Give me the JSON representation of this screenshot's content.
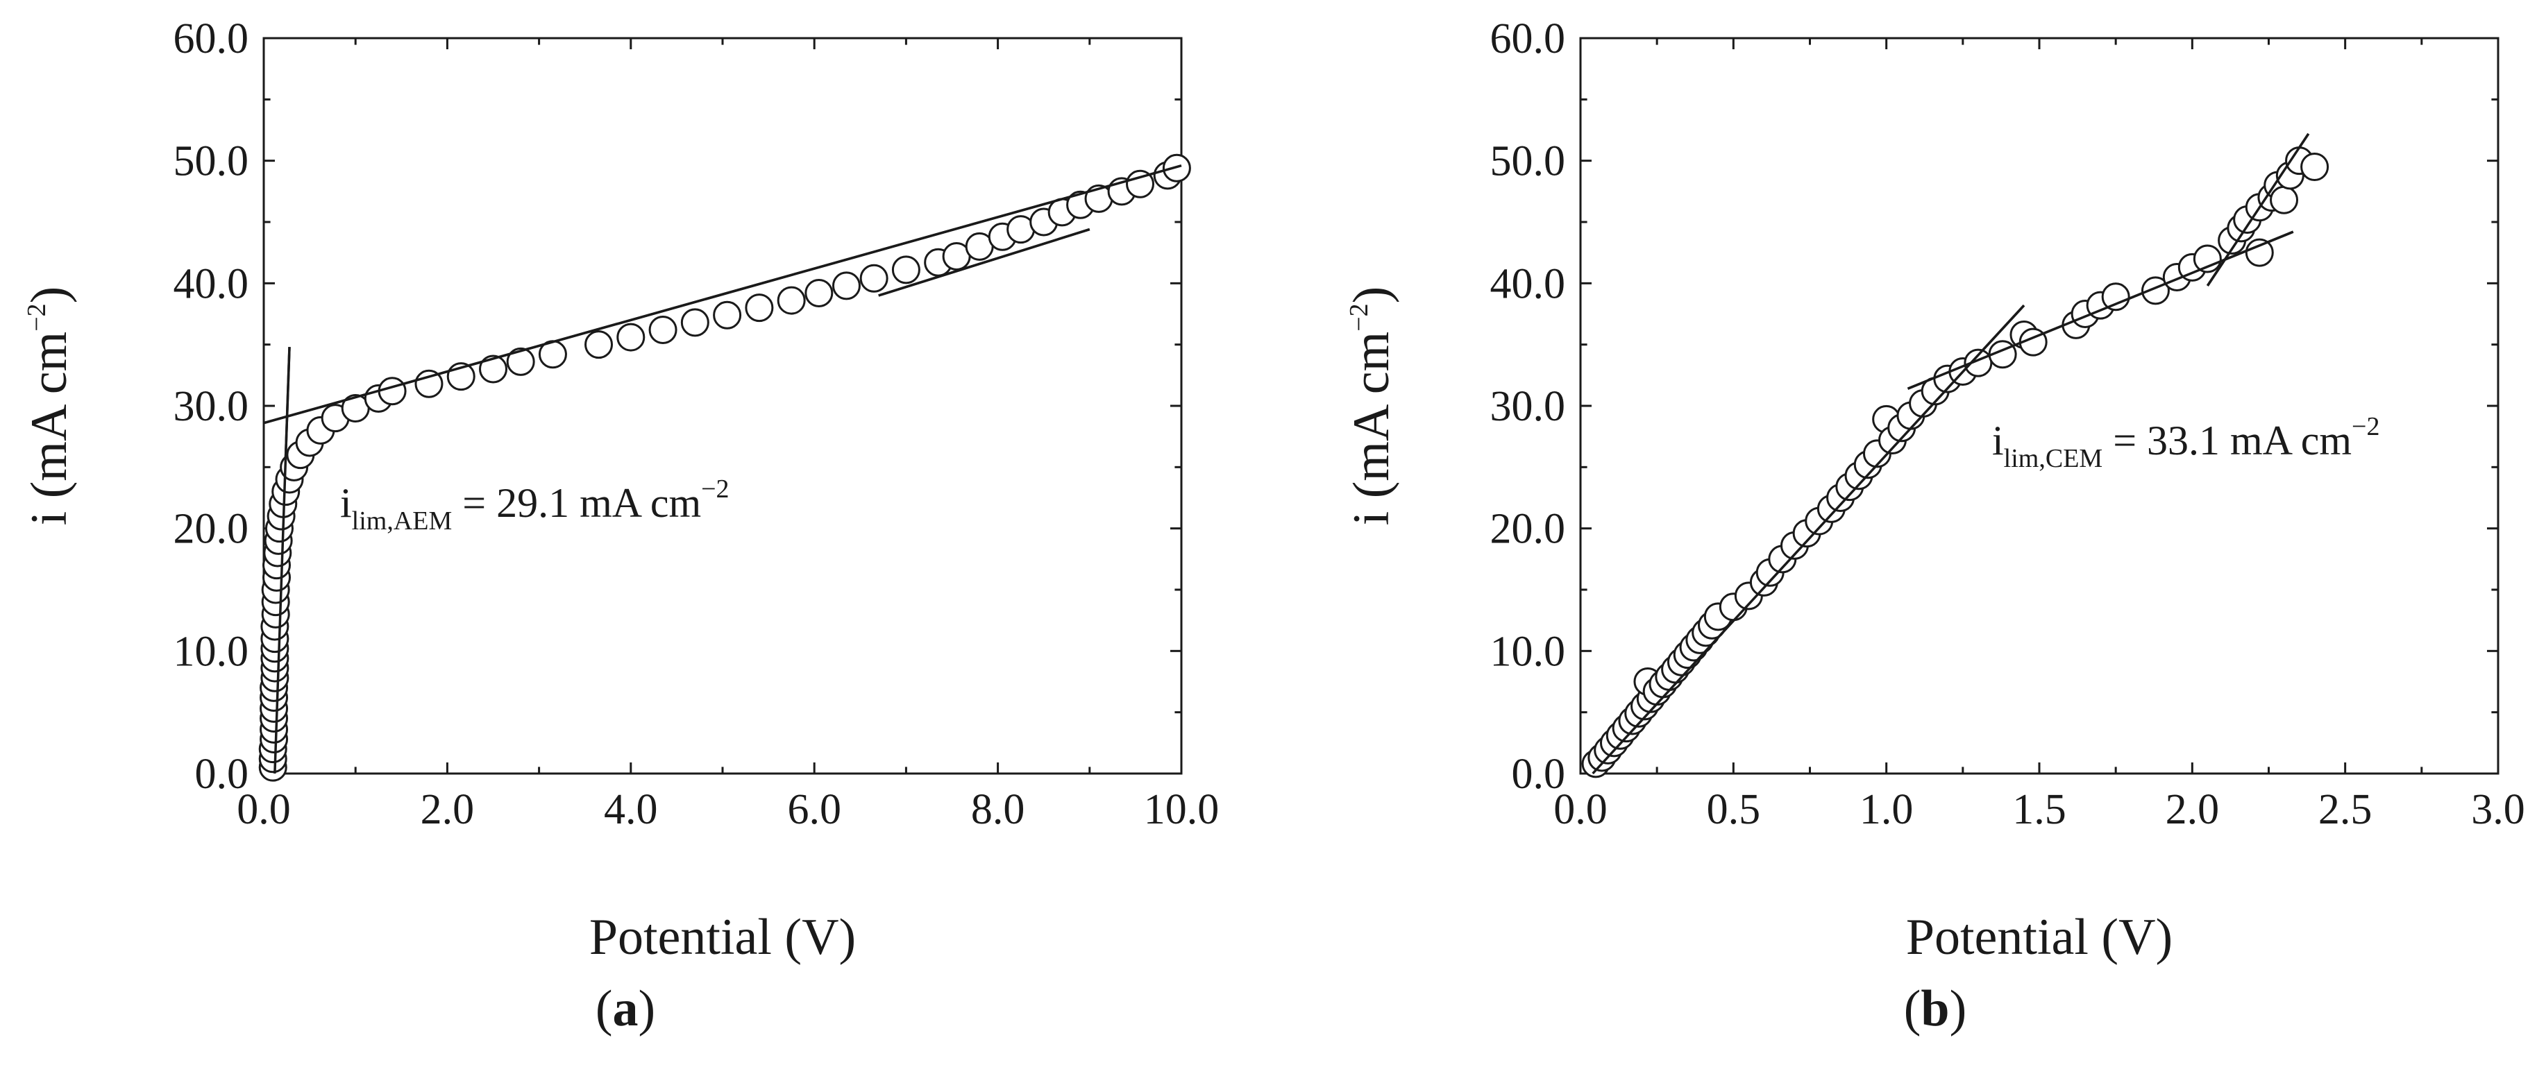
{
  "chart_data": [
    {
      "type": "scatter",
      "panel_label": "(a)",
      "panel_letter": "a",
      "xlabel": "Potential (V)",
      "ylabel": "i (mA cm−2)",
      "ylabel_main": "i (mA cm",
      "ylabel_sup": "−2",
      "ylabel_close": ")",
      "xlim": [
        0,
        10
      ],
      "ylim": [
        0,
        60
      ],
      "x_ticks": [
        0,
        2,
        4,
        6,
        8,
        10
      ],
      "x_tick_labels": [
        "0.0",
        "2.0",
        "4.0",
        "6.0",
        "8.0",
        "10.0"
      ],
      "y_ticks": [
        0,
        10,
        20,
        30,
        40,
        50,
        60
      ],
      "y_tick_labels": [
        "0.0",
        "10.0",
        "20.0",
        "30.0",
        "40.0",
        "50.0",
        "60.0"
      ],
      "annotation": {
        "base": "i",
        "sub": "lim,AEM",
        "rest": " = 29.1 mA cm",
        "sup": "−2",
        "x": 0.85,
        "y": 22.5
      },
      "points": [
        [
          0.1,
          0.5
        ],
        [
          0.1,
          1.2
        ],
        [
          0.1,
          2.0
        ],
        [
          0.11,
          2.8
        ],
        [
          0.11,
          3.6
        ],
        [
          0.11,
          4.5
        ],
        [
          0.11,
          5.3
        ],
        [
          0.11,
          6.2
        ],
        [
          0.11,
          7.0
        ],
        [
          0.12,
          7.8
        ],
        [
          0.12,
          8.6
        ],
        [
          0.12,
          9.4
        ],
        [
          0.12,
          10.2
        ],
        [
          0.12,
          11.0
        ],
        [
          0.12,
          12.0
        ],
        [
          0.13,
          13.0
        ],
        [
          0.13,
          14.0
        ],
        [
          0.13,
          15.0
        ],
        [
          0.14,
          16.0
        ],
        [
          0.14,
          17.0
        ],
        [
          0.15,
          18.0
        ],
        [
          0.16,
          19.0
        ],
        [
          0.17,
          20.0
        ],
        [
          0.19,
          21.0
        ],
        [
          0.21,
          22.0
        ],
        [
          0.24,
          23.0
        ],
        [
          0.28,
          24.0
        ],
        [
          0.33,
          25.0
        ],
        [
          0.4,
          26.0
        ],
        [
          0.5,
          27.0
        ],
        [
          0.62,
          28.0
        ],
        [
          0.78,
          29.0
        ],
        [
          1.0,
          29.8
        ],
        [
          1.25,
          30.6
        ],
        [
          1.4,
          31.2
        ],
        [
          1.8,
          31.8
        ],
        [
          2.15,
          32.4
        ],
        [
          2.5,
          33.0
        ],
        [
          2.8,
          33.6
        ],
        [
          3.15,
          34.2
        ],
        [
          3.65,
          35.0
        ],
        [
          4.0,
          35.6
        ],
        [
          4.35,
          36.2
        ],
        [
          4.7,
          36.8
        ],
        [
          5.05,
          37.4
        ],
        [
          5.4,
          38.0
        ],
        [
          5.75,
          38.6
        ],
        [
          6.05,
          39.2
        ],
        [
          6.35,
          39.8
        ],
        [
          6.65,
          40.4
        ],
        [
          7.0,
          41.1
        ],
        [
          7.35,
          41.7
        ],
        [
          7.55,
          42.2
        ],
        [
          7.8,
          43.0
        ],
        [
          8.05,
          43.8
        ],
        [
          8.25,
          44.4
        ],
        [
          8.5,
          45.0
        ],
        [
          8.7,
          45.8
        ],
        [
          8.9,
          46.4
        ],
        [
          9.1,
          46.9
        ],
        [
          9.35,
          47.5
        ],
        [
          9.55,
          48.1
        ],
        [
          9.85,
          48.8
        ],
        [
          9.95,
          49.4
        ]
      ],
      "fit_lines": [
        {
          "x": [
            0.12,
            0.28
          ],
          "y": [
            0.0,
            34.8
          ]
        },
        {
          "x": [
            0.0,
            10.0
          ],
          "y": [
            28.6,
            49.6
          ]
        },
        {
          "x": [
            6.7,
            9.0
          ],
          "y": [
            39.0,
            44.4
          ]
        }
      ]
    },
    {
      "type": "scatter",
      "panel_label": "(b)",
      "panel_letter": "b",
      "xlabel": "Potential (V)",
      "ylabel": "i (mA cm−2)",
      "ylabel_main": "i (mA cm",
      "ylabel_sup": "−2",
      "ylabel_close": ")",
      "xlim": [
        0,
        3
      ],
      "ylim": [
        0,
        60
      ],
      "x_ticks": [
        0,
        0.5,
        1.0,
        1.5,
        2.0,
        2.5,
        3.0
      ],
      "x_tick_labels": [
        "0.0",
        "0.5",
        "1.0",
        "1.5",
        "2.0",
        "2.5",
        "3.0"
      ],
      "y_ticks": [
        0,
        10,
        20,
        30,
        40,
        50,
        60
      ],
      "y_tick_labels": [
        "0.0",
        "10.0",
        "20.0",
        "30.0",
        "40.0",
        "50.0",
        "60.0"
      ],
      "annotation": {
        "base": "i",
        "sub": "lim,CEM",
        "rest": " = 33.1 mA cm",
        "sup": "−2",
        "x": 1.38,
        "y": 25.0
      },
      "points": [
        [
          0.05,
          0.8
        ],
        [
          0.07,
          1.3
        ],
        [
          0.09,
          1.9
        ],
        [
          0.11,
          2.5
        ],
        [
          0.13,
          3.1
        ],
        [
          0.15,
          3.7
        ],
        [
          0.17,
          4.3
        ],
        [
          0.19,
          4.9
        ],
        [
          0.21,
          5.5
        ],
        [
          0.23,
          6.1
        ],
        [
          0.22,
          7.5
        ],
        [
          0.25,
          6.7
        ],
        [
          0.27,
          7.3
        ],
        [
          0.29,
          7.9
        ],
        [
          0.31,
          8.5
        ],
        [
          0.33,
          9.1
        ],
        [
          0.35,
          9.7
        ],
        [
          0.37,
          10.3
        ],
        [
          0.39,
          10.9
        ],
        [
          0.41,
          11.5
        ],
        [
          0.43,
          12.1
        ],
        [
          0.45,
          12.8
        ],
        [
          0.5,
          13.6
        ],
        [
          0.55,
          14.5
        ],
        [
          0.6,
          15.6
        ],
        [
          0.62,
          16.4
        ],
        [
          0.66,
          17.5
        ],
        [
          0.7,
          18.6
        ],
        [
          0.74,
          19.6
        ],
        [
          0.78,
          20.6
        ],
        [
          0.82,
          21.6
        ],
        [
          0.85,
          22.5
        ],
        [
          0.88,
          23.4
        ],
        [
          0.91,
          24.3
        ],
        [
          0.94,
          25.2
        ],
        [
          0.97,
          26.1
        ],
        [
          1.0,
          28.9
        ],
        [
          1.02,
          27.2
        ],
        [
          1.05,
          28.2
        ],
        [
          1.08,
          29.2
        ],
        [
          1.12,
          30.2
        ],
        [
          1.16,
          31.2
        ],
        [
          1.2,
          32.2
        ],
        [
          1.25,
          32.8
        ],
        [
          1.3,
          33.5
        ],
        [
          1.38,
          34.2
        ],
        [
          1.45,
          35.8
        ],
        [
          1.48,
          35.2
        ],
        [
          1.62,
          36.6
        ],
        [
          1.65,
          37.5
        ],
        [
          1.7,
          38.2
        ],
        [
          1.75,
          38.9
        ],
        [
          1.88,
          39.4
        ],
        [
          1.95,
          40.5
        ],
        [
          2.0,
          41.3
        ],
        [
          2.05,
          42.0
        ],
        [
          2.13,
          43.5
        ],
        [
          2.16,
          44.5
        ],
        [
          2.18,
          45.2
        ],
        [
          2.22,
          46.2
        ],
        [
          2.22,
          42.5
        ],
        [
          2.26,
          47.0
        ],
        [
          2.28,
          48.0
        ],
        [
          2.3,
          46.8
        ],
        [
          2.32,
          48.8
        ],
        [
          2.35,
          50.0
        ],
        [
          2.4,
          49.5
        ]
      ],
      "fit_lines": [
        {
          "x": [
            0.04,
            1.45
          ],
          "y": [
            0.0,
            38.2
          ]
        },
        {
          "x": [
            1.07,
            2.33
          ],
          "y": [
            31.4,
            44.2
          ]
        },
        {
          "x": [
            2.05,
            2.38
          ],
          "y": [
            39.8,
            52.2
          ]
        }
      ]
    }
  ]
}
